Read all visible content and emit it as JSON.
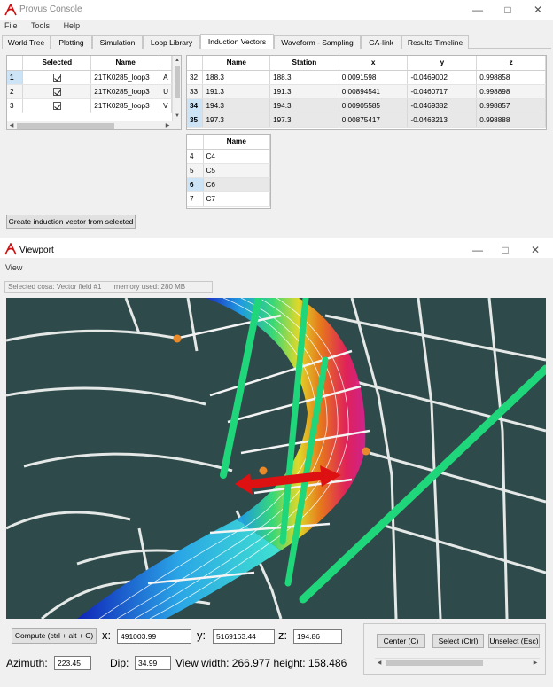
{
  "app": {
    "title": "Provus Console",
    "logo_color": "#cc1111"
  },
  "menu": [
    "File",
    "Tools",
    "Help"
  ],
  "tabs": [
    {
      "label": "World Tree"
    },
    {
      "label": "Plotting"
    },
    {
      "label": "Simulation"
    },
    {
      "label": "Loop Library"
    },
    {
      "label": "Induction Vectors"
    },
    {
      "label": "Waveform - Sampling"
    },
    {
      "label": "GA-link"
    },
    {
      "label": "Results Timeline"
    }
  ],
  "active_tab": "Induction Vectors",
  "loops_table": {
    "headers": [
      "Selected",
      "Name"
    ],
    "rows": [
      {
        "num": "1",
        "name": "21TK0285_loop3",
        "extra": "A"
      },
      {
        "num": "2",
        "name": "21TK0285_loop3",
        "extra": "U"
      },
      {
        "num": "3",
        "name": "21TK0285_loop3",
        "extra": "V"
      }
    ]
  },
  "stations_table": {
    "headers": [
      "Name",
      "Station",
      "x",
      "y",
      "z"
    ],
    "rows": [
      {
        "num": "32",
        "name": "188.3",
        "station": "188.3",
        "x": "0.0091598",
        "y": "-0.0469002",
        "z": "0.998858"
      },
      {
        "num": "33",
        "name": "191.3",
        "station": "191.3",
        "x": "0.00894541",
        "y": "-0.0460717",
        "z": "0.998898"
      },
      {
        "num": "34",
        "name": "194.3",
        "station": "194.3",
        "x": "0.00905585",
        "y": "-0.0469382",
        "z": "0.998857"
      },
      {
        "num": "35",
        "name": "197.3",
        "station": "197.3",
        "x": "0.00875417",
        "y": "-0.0463213",
        "z": "0.998888"
      }
    ]
  },
  "channels_table": {
    "headers": [
      "Name"
    ],
    "rows": [
      {
        "num": "4",
        "name": "C4"
      },
      {
        "num": "5",
        "name": "C5"
      },
      {
        "num": "6",
        "name": "C6"
      },
      {
        "num": "7",
        "name": "C7"
      }
    ]
  },
  "create_button": "Create induction vector from selected",
  "viewport": {
    "title": "Viewport",
    "menu": "View",
    "selected_cosa": "Selected cosa: Vector field #1",
    "memory_used": "memory used: 280 MB",
    "background_color": "#2f4a4a",
    "vector_color": "#1fd67a",
    "arrow_color": "#dd1111"
  },
  "controls": {
    "compute_button": "Compute (ctrl + alt + C)",
    "x_label": "x:",
    "x_value": "491003.99",
    "y_label": "y:",
    "y_value": "5169163.44",
    "z_label": "z:",
    "z_value": "194.86",
    "azimuth_label": "Azimuth:",
    "azimuth_value": "223.45",
    "dip_label": "Dip:",
    "dip_value": "34.99",
    "view_text": "View width: 266.977 height: 158.486",
    "center_button": "Center (C)",
    "select_button": "Select (Ctrl)",
    "unselect_button": "Unselect (Esc)"
  }
}
